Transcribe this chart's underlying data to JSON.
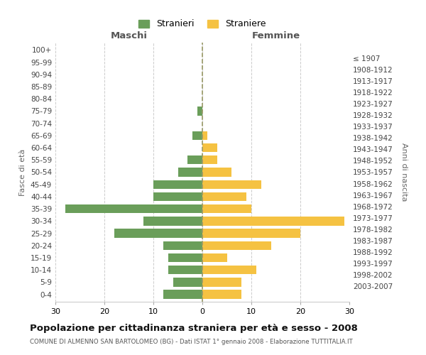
{
  "age_groups": [
    "0-4",
    "5-9",
    "10-14",
    "15-19",
    "20-24",
    "25-29",
    "30-34",
    "35-39",
    "40-44",
    "45-49",
    "50-54",
    "55-59",
    "60-64",
    "65-69",
    "70-74",
    "75-79",
    "80-84",
    "85-89",
    "90-94",
    "95-99",
    "100+"
  ],
  "birth_years": [
    "2003-2007",
    "1998-2002",
    "1993-1997",
    "1988-1992",
    "1983-1987",
    "1978-1982",
    "1973-1977",
    "1968-1972",
    "1963-1967",
    "1958-1962",
    "1953-1957",
    "1948-1952",
    "1943-1947",
    "1938-1942",
    "1933-1937",
    "1928-1932",
    "1923-1927",
    "1918-1922",
    "1913-1917",
    "1908-1912",
    "≤ 1907"
  ],
  "males": [
    8,
    6,
    7,
    7,
    8,
    18,
    12,
    28,
    10,
    10,
    5,
    3,
    0,
    2,
    0,
    1,
    0,
    0,
    0,
    0,
    0
  ],
  "females": [
    8,
    8,
    11,
    5,
    14,
    20,
    29,
    10,
    9,
    12,
    6,
    3,
    3,
    1,
    0,
    0,
    0,
    0,
    0,
    0,
    0
  ],
  "male_color": "#6a9e5a",
  "female_color": "#f5c242",
  "title": "Popolazione per cittadinanza straniera per età e sesso - 2008",
  "subtitle": "COMUNE DI ALMENNO SAN BARTOLOMEO (BG) - Dati ISTAT 1° gennaio 2008 - Elaborazione TUTTITALIA.IT",
  "xlabel_left": "Maschi",
  "xlabel_right": "Femmine",
  "ylabel_left": "Fasce di età",
  "ylabel_right": "Anni di nascita",
  "xlim": 30,
  "legend_stranieri": "Stranieri",
  "legend_straniere": "Straniere",
  "background_color": "#ffffff",
  "grid_color": "#cccccc",
  "dashed_line_color": "#999966"
}
